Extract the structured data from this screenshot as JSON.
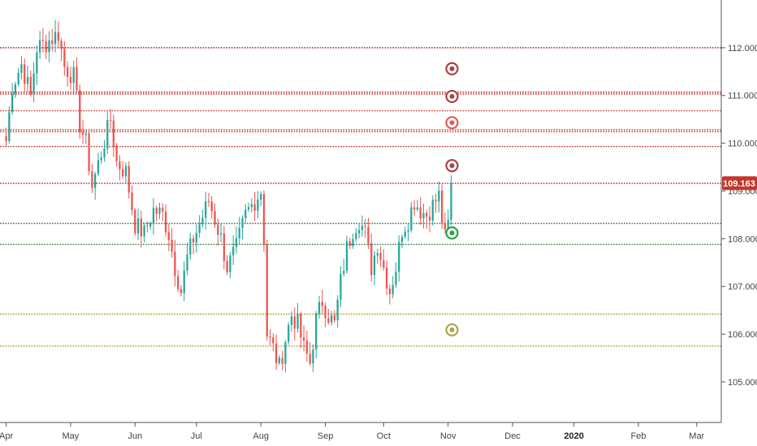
{
  "chart_data": {
    "type": "candlestick",
    "title": "",
    "y_axis_side": "right",
    "ylim": [
      104.15,
      113.0
    ],
    "y_ticks": [
      "112.000",
      "111.000",
      "110.000",
      "109.000",
      "108.000",
      "107.000",
      "106.000",
      "105.000"
    ],
    "y_tick_values": [
      112,
      111,
      110,
      109,
      108,
      107,
      106,
      105
    ],
    "x_ticks": [
      {
        "label": "Apr",
        "t": 0
      },
      {
        "label": "May",
        "t": 21
      },
      {
        "label": "Jun",
        "t": 42
      },
      {
        "label": "Jul",
        "t": 62
      },
      {
        "label": "Aug",
        "t": 83
      },
      {
        "label": "Sep",
        "t": 104
      },
      {
        "label": "Oct",
        "t": 123
      },
      {
        "label": "Nov",
        "t": 144
      },
      {
        "label": "Dec",
        "t": 165
      },
      {
        "label": "2020",
        "t": 185,
        "bold": true
      },
      {
        "label": "Feb",
        "t": 206
      },
      {
        "label": "Mar",
        "t": 225
      }
    ],
    "x_range": [
      -2,
      233
    ],
    "last_price": {
      "value": 109.163,
      "label": "109.163",
      "color": "#c0392b"
    },
    "colors": {
      "up": "#26a69a",
      "down": "#ef5350"
    },
    "horizontal_levels": [
      {
        "value": 112.0,
        "color": "#b71c1c"
      },
      {
        "value": 111.07,
        "color": "#b71c1c"
      },
      {
        "value": 111.03,
        "color": "#b71c1c"
      },
      {
        "value": 110.68,
        "color": "#d32f2f"
      },
      {
        "value": 110.28,
        "color": "#d32f2f"
      },
      {
        "value": 110.24,
        "color": "#d32f2f"
      },
      {
        "value": 109.93,
        "color": "#c62828"
      },
      {
        "value": 109.16,
        "color": "#b71c1c"
      },
      {
        "value": 108.32,
        "color": "#2e7d32"
      },
      {
        "value": 107.88,
        "color": "#2e7d32"
      },
      {
        "value": 106.42,
        "color": "#9e9d24"
      },
      {
        "value": 105.75,
        "color": "#9e9d24"
      }
    ],
    "markers": [
      {
        "t": 145,
        "value": 111.56,
        "color": "#a94442"
      },
      {
        "t": 145,
        "value": 110.98,
        "color": "#a94442"
      },
      {
        "t": 145,
        "value": 110.43,
        "color": "#e25b5b"
      },
      {
        "t": 145,
        "value": 109.53,
        "color": "#a94442"
      },
      {
        "t": 145,
        "value": 108.12,
        "color": "#2e9e44"
      },
      {
        "t": 145,
        "value": 106.09,
        "color": "#b0a24a"
      }
    ],
    "anchors": [
      [
        0,
        110.05
      ],
      [
        2,
        111.2
      ],
      [
        5,
        111.65
      ],
      [
        8,
        111.0
      ],
      [
        10,
        112.0
      ],
      [
        13,
        112.1
      ],
      [
        17,
        112.3
      ],
      [
        19,
        111.6
      ],
      [
        22,
        111.4
      ],
      [
        24,
        110.4
      ],
      [
        26,
        110.0
      ],
      [
        28,
        109.1
      ],
      [
        31,
        109.8
      ],
      [
        34,
        110.5
      ],
      [
        36,
        109.6
      ],
      [
        39,
        109.4
      ],
      [
        42,
        108.3
      ],
      [
        45,
        108.1
      ],
      [
        48,
        108.6
      ],
      [
        51,
        108.5
      ],
      [
        53,
        108.1
      ],
      [
        55,
        107.4
      ],
      [
        57,
        106.9
      ],
      [
        59,
        107.6
      ],
      [
        61,
        108.0
      ],
      [
        63,
        108.3
      ],
      [
        66,
        108.8
      ],
      [
        68,
        108.4
      ],
      [
        70,
        108.0
      ],
      [
        72,
        107.4
      ],
      [
        75,
        107.8
      ],
      [
        78,
        108.5
      ],
      [
        81,
        108.8
      ],
      [
        83,
        109.0
      ],
      [
        84,
        108.0
      ],
      [
        85,
        106.0
      ],
      [
        87,
        105.7
      ],
      [
        89,
        105.3
      ],
      [
        91,
        105.9
      ],
      [
        93,
        106.4
      ],
      [
        95,
        106.2
      ],
      [
        97,
        105.7
      ],
      [
        99,
        105.4
      ],
      [
        101,
        106.3
      ],
      [
        103,
        106.7
      ],
      [
        105,
        106.4
      ],
      [
        107,
        106.2
      ],
      [
        109,
        107.1
      ],
      [
        111,
        107.8
      ],
      [
        113,
        108.2
      ],
      [
        115,
        108.4
      ],
      [
        117,
        108.1
      ],
      [
        119,
        107.4
      ],
      [
        121,
        107.9
      ],
      [
        123,
        107.4
      ],
      [
        125,
        106.9
      ],
      [
        127,
        107.4
      ],
      [
        129,
        108.2
      ],
      [
        131,
        108.4
      ],
      [
        133,
        108.8
      ],
      [
        135,
        108.6
      ],
      [
        137,
        108.5
      ],
      [
        139,
        108.7
      ],
      [
        141,
        108.9
      ],
      [
        142,
        108.4
      ],
      [
        143,
        108.0
      ],
      [
        144,
        108.3
      ],
      [
        145,
        109.163
      ]
    ]
  }
}
